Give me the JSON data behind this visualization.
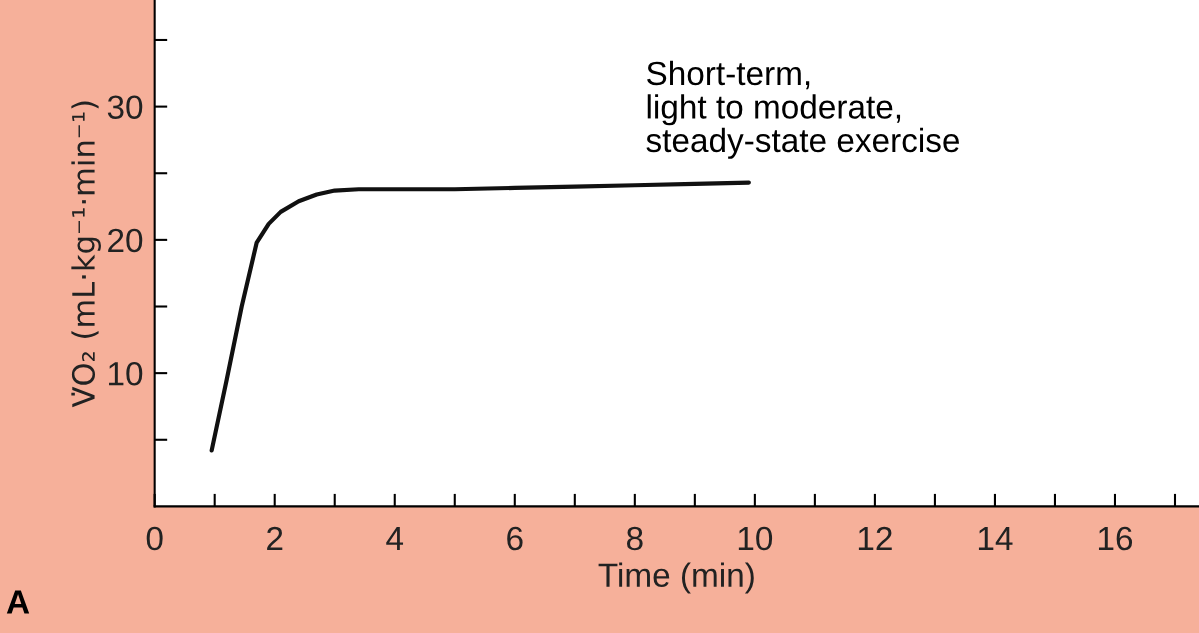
{
  "chart_data": {
    "type": "line",
    "xlabel": "Time (min)",
    "ylabel": "V̇O₂ (mL·kg⁻¹·min⁻¹)",
    "annotations": [
      "Short-term,\nlight to moderate,\nsteady-state exercise",
      "A"
    ],
    "x": [
      0.95,
      1.2,
      1.45,
      1.7,
      1.9,
      2.1,
      2.4,
      2.7,
      3.0,
      3.4,
      4.0,
      5.0,
      6.0,
      7.0,
      8.0,
      9.0,
      9.9
    ],
    "series": [
      {
        "color": "#111111",
        "values": [
          4.2,
          9.5,
          15,
          19.8,
          21.2,
          22.1,
          22.9,
          23.4,
          23.7,
          23.8,
          23.8,
          23.8,
          23.9,
          24.0,
          24.1,
          24.2,
          24.3
        ]
      }
    ],
    "xlim": [
      0,
      17.4
    ],
    "ylim": [
      0,
      38
    ],
    "xticks": [
      0,
      {
        "value": 1,
        "label": null
      },
      2,
      {
        "value": 3,
        "label": null
      },
      4,
      {
        "value": 5,
        "label": null
      },
      6,
      {
        "value": 7,
        "label": null
      },
      8,
      {
        "value": 9,
        "label": null
      },
      10,
      {
        "value": 11,
        "label": null
      },
      12,
      {
        "value": 13,
        "label": null
      },
      14,
      {
        "value": 15,
        "label": null
      },
      16,
      {
        "value": 17,
        "label": null
      }
    ],
    "yticks": [
      {
        "value": 5,
        "label": null
      },
      10,
      {
        "value": 15,
        "label": null
      },
      20,
      {
        "value": 25,
        "label": null
      },
      30,
      {
        "value": 35,
        "label": null
      }
    ],
    "grid": false,
    "legend": false,
    "marker": "none",
    "line_style": "solid"
  }
}
